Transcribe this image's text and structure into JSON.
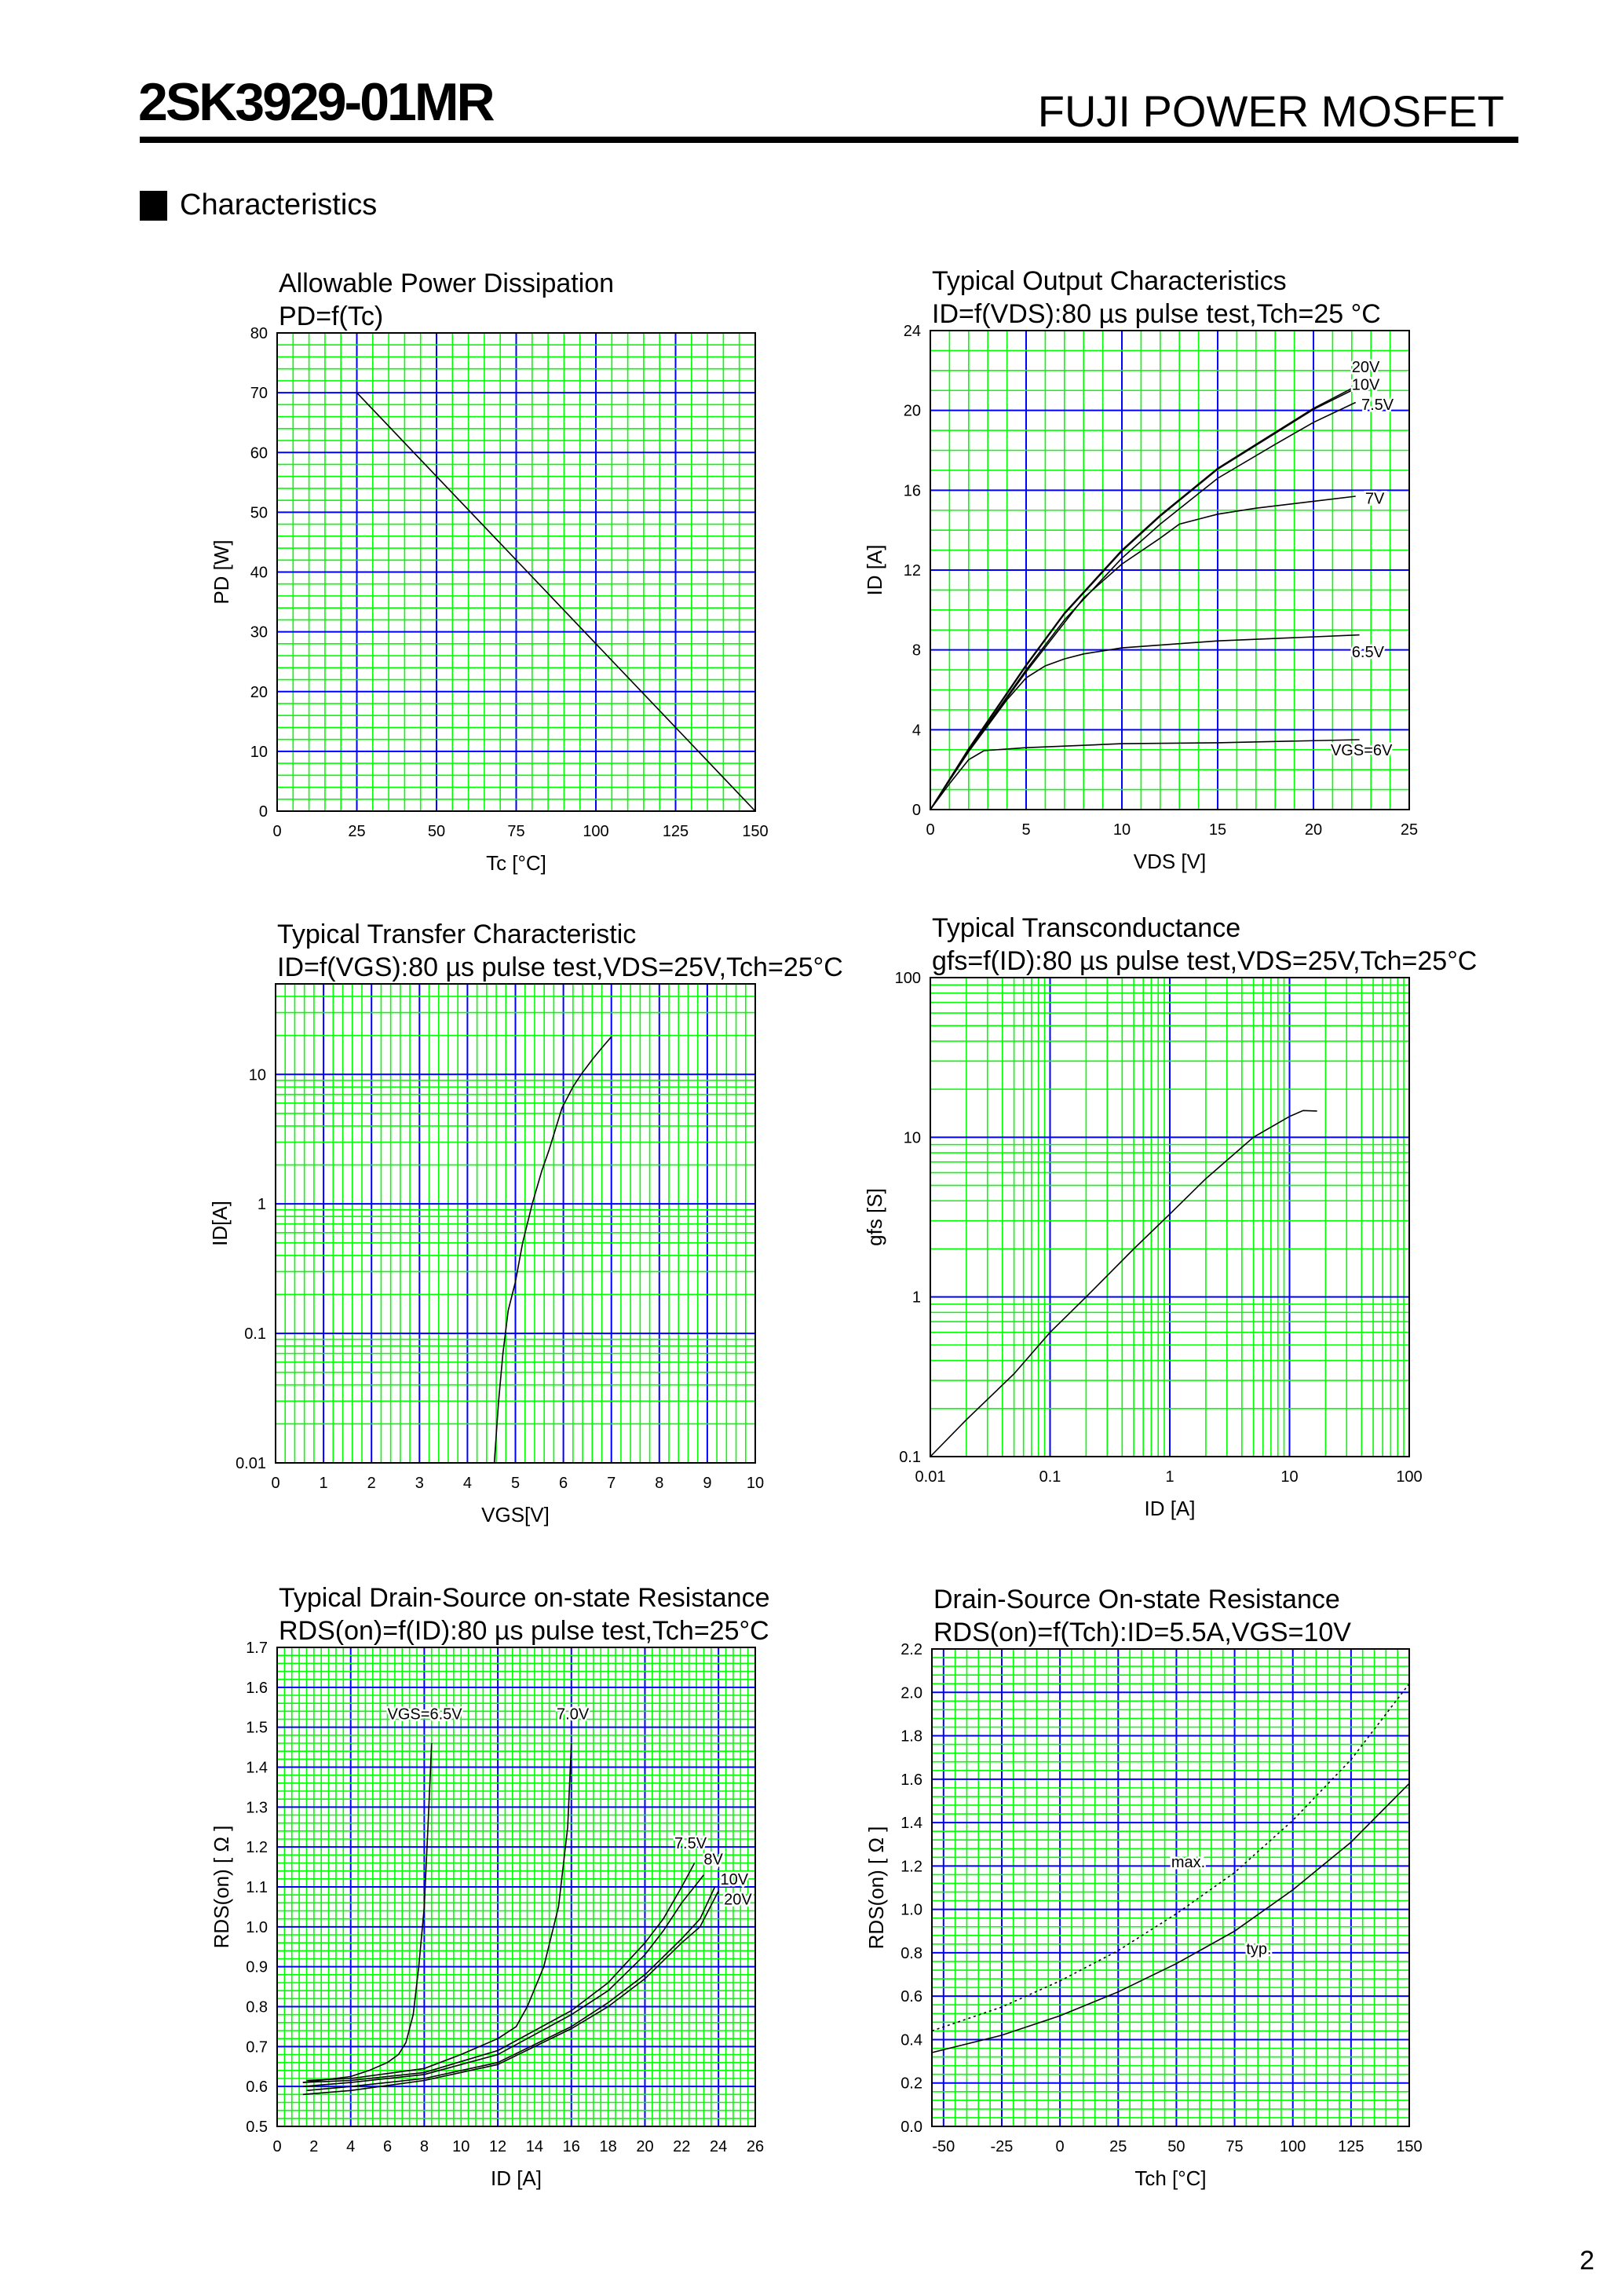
{
  "header": {
    "part_number": "2SK3929-01MR",
    "product_line": "FUJI POWER MOSFET"
  },
  "section": {
    "title": "Characteristics"
  },
  "footer": {
    "page_number": "2"
  },
  "colors": {
    "grid_minor": "#00ff00",
    "grid_major": "#0000ff",
    "curve": "#000000"
  },
  "chart_data": [
    {
      "type": "line",
      "title": "Allowable Power Dissipation",
      "subtitle": "PD=f(Tc)",
      "xlabel": "Tc [°C]",
      "ylabel": "PD [W]",
      "xscale": "linear",
      "yscale": "linear",
      "xlim": [
        0,
        150
      ],
      "ylim": [
        0,
        80
      ],
      "grid": true,
      "xticks": [
        "0",
        "25",
        "50",
        "75",
        "100",
        "125",
        "150"
      ],
      "yticks": [
        "0",
        "10",
        "20",
        "30",
        "40",
        "50",
        "60",
        "70",
        "80"
      ],
      "series": [
        {
          "points": [
            [
              25,
              70
            ],
            [
              150,
              0
            ]
          ]
        }
      ]
    },
    {
      "type": "line",
      "title": "Typical Output Characteristics",
      "subtitle": "ID=f(VDS):80 µs pulse test,Tch=25 °C",
      "xlabel": "VDS [V]",
      "ylabel": "ID [A]",
      "xscale": "linear",
      "yscale": "linear",
      "xlim": [
        0,
        25
      ],
      "ylim": [
        0,
        24
      ],
      "grid": true,
      "xticks": [
        "0",
        "5",
        "10",
        "15",
        "20",
        "25"
      ],
      "yticks": [
        "0",
        "4",
        "8",
        "12",
        "16",
        "20",
        "24"
      ],
      "series": [
        {
          "name": "20V",
          "points": [
            [
              0,
              0
            ],
            [
              2,
              3.05
            ],
            [
              5,
              7.25
            ],
            [
              7,
              9.85
            ],
            [
              10,
              13.0
            ],
            [
              12,
              14.75
            ],
            [
              15,
              17.1
            ],
            [
              18,
              18.9
            ],
            [
              20,
              20.1
            ],
            [
              22.1,
              21.15
            ]
          ]
        },
        {
          "name": "10V",
          "points": [
            [
              0,
              0
            ],
            [
              2,
              3.0
            ],
            [
              5,
              7.2
            ],
            [
              7,
              9.8
            ],
            [
              10,
              12.95
            ],
            [
              12,
              14.7
            ],
            [
              15,
              17.05
            ],
            [
              18,
              18.85
            ],
            [
              20,
              20.05
            ],
            [
              22.1,
              21.05
            ]
          ]
        },
        {
          "name": "7.5V",
          "points": [
            [
              0,
              0
            ],
            [
              2,
              2.95
            ],
            [
              5,
              7.0
            ],
            [
              7,
              9.5
            ],
            [
              10,
              12.6
            ],
            [
              12,
              14.3
            ],
            [
              15,
              16.6
            ],
            [
              18,
              18.3
            ],
            [
              20,
              19.4
            ],
            [
              22.2,
              20.4
            ]
          ]
        },
        {
          "name": "7V",
          "points": [
            [
              0,
              0
            ],
            [
              2,
              2.95
            ],
            [
              5,
              6.9
            ],
            [
              8,
              10.6
            ],
            [
              10,
              12.3
            ],
            [
              12,
              13.6
            ],
            [
              13,
              14.3
            ],
            [
              15,
              14.8
            ],
            [
              17,
              15.1
            ],
            [
              22.2,
              15.7
            ]
          ]
        },
        {
          "name": "6.5V",
          "points": [
            [
              0,
              0
            ],
            [
              2,
              2.9
            ],
            [
              4,
              5.5
            ],
            [
              5,
              6.6
            ],
            [
              6,
              7.2
            ],
            [
              7,
              7.55
            ],
            [
              8,
              7.8
            ],
            [
              10,
              8.1
            ],
            [
              15,
              8.45
            ],
            [
              22.4,
              8.75
            ]
          ]
        },
        {
          "name": "VGS=6V",
          "points": [
            [
              0,
              0
            ],
            [
              1,
              1.3
            ],
            [
              2,
              2.5
            ],
            [
              2.8,
              2.95
            ],
            [
              5,
              3.1
            ],
            [
              10,
              3.3
            ],
            [
              15,
              3.35
            ],
            [
              22.4,
              3.5
            ]
          ]
        }
      ]
    },
    {
      "type": "line",
      "title": "Typical Transfer Characteristic",
      "subtitle": "ID=f(VGS):80 µs pulse test,VDS=25V,Tch=25°C",
      "xlabel": "VGS[V]",
      "ylabel": "ID[A]",
      "xscale": "linear",
      "yscale": "log",
      "xlim": [
        0,
        10
      ],
      "ylim": [
        0.01,
        50
      ],
      "grid": true,
      "xticks": [
        "0",
        "1",
        "2",
        "3",
        "4",
        "5",
        "6",
        "7",
        "8",
        "9",
        "10"
      ],
      "yticks": [
        "0.01",
        "0.1",
        "1",
        "10"
      ],
      "series": [
        {
          "points": [
            [
              4.56,
              0.01
            ],
            [
              4.65,
              0.03
            ],
            [
              4.74,
              0.07
            ],
            [
              4.85,
              0.15
            ],
            [
              5.0,
              0.25
            ],
            [
              5.15,
              0.5
            ],
            [
              5.35,
              1.0
            ],
            [
              5.55,
              1.8
            ],
            [
              5.7,
              2.6
            ],
            [
              5.97,
              5.5
            ],
            [
              6.2,
              8.0
            ],
            [
              6.37,
              10
            ],
            [
              6.6,
              13
            ],
            [
              6.8,
              16
            ],
            [
              7.0,
              19.5
            ]
          ]
        }
      ]
    },
    {
      "type": "line",
      "title": "Typical Transconductance",
      "subtitle": "gfs=f(ID):80 µs pulse test,VDS=25V,Tch=25°C",
      "xlabel": "ID [A]",
      "ylabel": "gfs [S]",
      "xscale": "log",
      "yscale": "log",
      "xlim": [
        0.01,
        100
      ],
      "ylim": [
        0.1,
        100
      ],
      "grid": true,
      "xticks": [
        "0.01",
        "0.1",
        "1",
        "10",
        "100"
      ],
      "yticks": [
        "0.1",
        "1",
        "10",
        "100"
      ],
      "series": [
        {
          "points": [
            [
              0.01,
              0.1
            ],
            [
              0.02,
              0.17
            ],
            [
              0.05,
              0.33
            ],
            [
              0.1,
              0.6
            ],
            [
              0.2,
              1.0
            ],
            [
              0.5,
              2.0
            ],
            [
              1,
              3.3
            ],
            [
              2,
              5.5
            ],
            [
              5,
              10
            ],
            [
              10,
              13.5
            ],
            [
              13,
              14.7
            ],
            [
              17,
              14.6
            ]
          ]
        }
      ]
    },
    {
      "type": "line",
      "title": "Typical Drain-Source on-state Resistance",
      "subtitle": "RDS(on)=f(ID):80  µs pulse test,Tch=25°C",
      "xlabel": "ID [A]",
      "ylabel": "RDS(on) [ Ω ]",
      "xscale": "linear",
      "yscale": "linear",
      "xlim": [
        0,
        26
      ],
      "ylim": [
        0.5,
        1.7
      ],
      "grid": true,
      "xticks": [
        "0",
        "2",
        "4",
        "6",
        "8",
        "10",
        "12",
        "14",
        "16",
        "18",
        "20",
        "22",
        "24",
        "26"
      ],
      "yticks": [
        "0.5",
        "0.6",
        "0.7",
        "0.8",
        "0.9",
        "1.0",
        "1.1",
        "1.2",
        "1.3",
        "1.4",
        "1.5",
        "1.6",
        "1.7"
      ],
      "series": [
        {
          "name": "VGS=6.5V",
          "points": [
            [
              1.4,
              0.61
            ],
            [
              4,
              0.625
            ],
            [
              5,
              0.64
            ],
            [
              6,
              0.66
            ],
            [
              6.6,
              0.68
            ],
            [
              7,
              0.71
            ],
            [
              7.4,
              0.78
            ],
            [
              7.7,
              0.9
            ],
            [
              8,
              1.05
            ],
            [
              8.2,
              1.25
            ],
            [
              8.4,
              1.46
            ]
          ]
        },
        {
          "name": "7.0V",
          "points": [
            [
              1.6,
              0.615
            ],
            [
              4,
              0.62
            ],
            [
              8,
              0.645
            ],
            [
              10,
              0.68
            ],
            [
              12,
              0.72
            ],
            [
              13,
              0.75
            ],
            [
              13.6,
              0.8
            ],
            [
              14.5,
              0.9
            ],
            [
              15.3,
              1.05
            ],
            [
              15.8,
              1.25
            ],
            [
              16,
              1.46
            ]
          ]
        },
        {
          "name": "7.5V",
          "points": [
            [
              1.4,
              0.61
            ],
            [
              4,
              0.615
            ],
            [
              8,
              0.635
            ],
            [
              12,
              0.69
            ],
            [
              16,
              0.79
            ],
            [
              18,
              0.86
            ],
            [
              20,
              0.96
            ],
            [
              21,
              1.02
            ],
            [
              22,
              1.1
            ],
            [
              22.7,
              1.16
            ]
          ]
        },
        {
          "name": "8V",
          "points": [
            [
              1.4,
              0.6
            ],
            [
              4,
              0.61
            ],
            [
              8,
              0.63
            ],
            [
              12,
              0.68
            ],
            [
              16,
              0.78
            ],
            [
              18,
              0.84
            ],
            [
              20,
              0.93
            ],
            [
              21,
              0.99
            ],
            [
              22,
              1.06
            ],
            [
              23.2,
              1.13
            ]
          ]
        },
        {
          "name": "10V",
          "points": [
            [
              1.6,
              0.59
            ],
            [
              4,
              0.6
            ],
            [
              8,
              0.62
            ],
            [
              12,
              0.66
            ],
            [
              16,
              0.75
            ],
            [
              18,
              0.81
            ],
            [
              20,
              0.88
            ],
            [
              22,
              0.97
            ],
            [
              23,
              1.02
            ],
            [
              23.8,
              1.1
            ]
          ]
        },
        {
          "name": "20V",
          "points": [
            [
              1.4,
              0.58
            ],
            [
              4,
              0.59
            ],
            [
              8,
              0.615
            ],
            [
              12,
              0.655
            ],
            [
              16,
              0.745
            ],
            [
              18,
              0.8
            ],
            [
              20,
              0.87
            ],
            [
              22,
              0.96
            ],
            [
              23,
              1.0
            ],
            [
              24,
              1.09
            ]
          ]
        }
      ]
    },
    {
      "type": "line",
      "title": "Drain-Source On-state Resistance",
      "subtitle": "RDS(on)=f(Tch):ID=5.5A,VGS=10V",
      "xlabel": "Tch [°C]",
      "ylabel": "RDS(on) [ Ω ]",
      "xscale": "linear",
      "yscale": "linear",
      "xlim": [
        -55,
        150
      ],
      "ylim": [
        0,
        2.2
      ],
      "grid": true,
      "xticks": [
        "-50",
        "-25",
        "0",
        "25",
        "50",
        "75",
        "100",
        "125",
        "150"
      ],
      "yticks": [
        "0.0",
        "0.2",
        "0.4",
        "0.6",
        "0.8",
        "1.0",
        "1.2",
        "1.4",
        "1.6",
        "1.8",
        "2.0",
        "2.2"
      ],
      "series": [
        {
          "name": "max.",
          "line_style": "dotted",
          "points": [
            [
              -55,
              0.44
            ],
            [
              -25,
              0.55
            ],
            [
              0,
              0.67
            ],
            [
              25,
              0.81
            ],
            [
              50,
              0.98
            ],
            [
              75,
              1.17
            ],
            [
              100,
              1.41
            ],
            [
              125,
              1.69
            ],
            [
              150,
              2.04
            ]
          ]
        },
        {
          "name": "typ.",
          "line_style": "solid",
          "points": [
            [
              -55,
              0.34
            ],
            [
              -25,
              0.42
            ],
            [
              0,
              0.51
            ],
            [
              25,
              0.62
            ],
            [
              50,
              0.75
            ],
            [
              75,
              0.9
            ],
            [
              100,
              1.09
            ],
            [
              125,
              1.31
            ],
            [
              150,
              1.58
            ]
          ]
        }
      ]
    }
  ]
}
